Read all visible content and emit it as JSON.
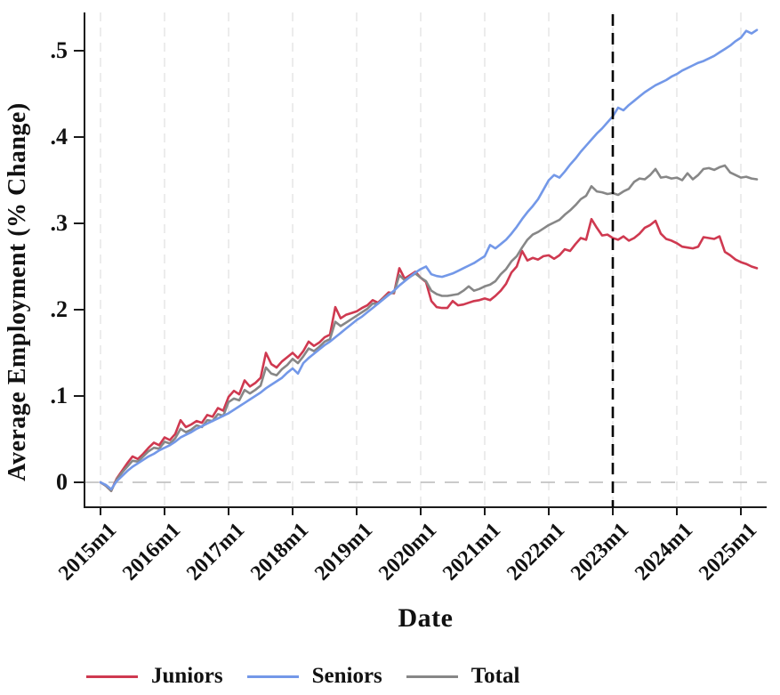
{
  "chart_data": {
    "type": "line",
    "title": "",
    "xlabel": "Date",
    "ylabel": "Average Employment (% Change)",
    "x_unit": "monthly",
    "x_start": "2015m1",
    "x_end": "2025m4",
    "n_points": 124,
    "x_tick_labels": [
      "2015m1",
      "2016m1",
      "2017m1",
      "2018m1",
      "2019m1",
      "2020m1",
      "2021m1",
      "2022m1",
      "2023m1",
      "2024m1",
      "2025m1"
    ],
    "x_tick_month_index": [
      0,
      12,
      24,
      36,
      48,
      60,
      72,
      84,
      96,
      108,
      120
    ],
    "y_ticks": [
      0,
      0.1,
      0.2,
      0.3,
      0.4,
      0.5
    ],
    "y_tick_labels": [
      "0",
      ".1",
      ".2",
      ".3",
      ".4",
      ".5"
    ],
    "ylim": [
      -0.03,
      0.545
    ],
    "grid": "light dashed vertical gridlines at each year tick",
    "legend_position": "bottom",
    "reference_lines": [
      {
        "name": "zero-line",
        "orientation": "horizontal",
        "y": 0,
        "style": "dashed",
        "color": "#c3c3c3"
      },
      {
        "name": "event-line",
        "orientation": "vertical",
        "x": "2023m1",
        "x_month_index": 96,
        "style": "dashed",
        "color": "#000000"
      }
    ],
    "colors": {
      "axis": "#1a1a1a",
      "gridline": "#e8e8e8",
      "background": "#ffffff"
    },
    "series": [
      {
        "name": "Juniors",
        "color": "#cf3950",
        "values": [
          0.0,
          -0.004,
          -0.01,
          0.004,
          0.013,
          0.022,
          0.03,
          0.027,
          0.033,
          0.04,
          0.046,
          0.043,
          0.052,
          0.049,
          0.056,
          0.072,
          0.064,
          0.067,
          0.071,
          0.069,
          0.078,
          0.076,
          0.086,
          0.083,
          0.099,
          0.106,
          0.102,
          0.118,
          0.111,
          0.115,
          0.121,
          0.15,
          0.137,
          0.133,
          0.14,
          0.145,
          0.15,
          0.144,
          0.152,
          0.163,
          0.158,
          0.162,
          0.168,
          0.171,
          0.203,
          0.19,
          0.194,
          0.196,
          0.198,
          0.202,
          0.205,
          0.211,
          0.208,
          0.214,
          0.22,
          0.219,
          0.248,
          0.236,
          0.24,
          0.244,
          0.237,
          0.232,
          0.21,
          0.203,
          0.202,
          0.202,
          0.21,
          0.205,
          0.206,
          0.208,
          0.21,
          0.211,
          0.213,
          0.211,
          0.216,
          0.222,
          0.23,
          0.243,
          0.25,
          0.268,
          0.257,
          0.26,
          0.258,
          0.262,
          0.263,
          0.259,
          0.263,
          0.27,
          0.268,
          0.276,
          0.283,
          0.281,
          0.305,
          0.295,
          0.286,
          0.287,
          0.283,
          0.281,
          0.285,
          0.28,
          0.283,
          0.288,
          0.295,
          0.298,
          0.303,
          0.288,
          0.282,
          0.28,
          0.277,
          0.273,
          0.272,
          0.271,
          0.273,
          0.284,
          0.283,
          0.282,
          0.285,
          0.267,
          0.263,
          0.258,
          0.255,
          0.253,
          0.25,
          0.248
        ]
      },
      {
        "name": "Seniors",
        "color": "#7398e8",
        "values": [
          0.0,
          -0.003,
          -0.008,
          0.001,
          0.007,
          0.013,
          0.018,
          0.022,
          0.026,
          0.03,
          0.033,
          0.037,
          0.04,
          0.043,
          0.047,
          0.052,
          0.055,
          0.058,
          0.062,
          0.065,
          0.068,
          0.071,
          0.074,
          0.077,
          0.08,
          0.084,
          0.088,
          0.092,
          0.096,
          0.1,
          0.104,
          0.109,
          0.113,
          0.117,
          0.121,
          0.127,
          0.132,
          0.126,
          0.138,
          0.144,
          0.149,
          0.154,
          0.159,
          0.163,
          0.168,
          0.173,
          0.178,
          0.183,
          0.188,
          0.192,
          0.197,
          0.202,
          0.207,
          0.212,
          0.217,
          0.222,
          0.228,
          0.233,
          0.238,
          0.243,
          0.247,
          0.25,
          0.241,
          0.239,
          0.238,
          0.24,
          0.242,
          0.245,
          0.248,
          0.251,
          0.254,
          0.258,
          0.262,
          0.275,
          0.271,
          0.276,
          0.281,
          0.288,
          0.296,
          0.305,
          0.313,
          0.32,
          0.328,
          0.339,
          0.35,
          0.356,
          0.353,
          0.36,
          0.368,
          0.375,
          0.383,
          0.39,
          0.397,
          0.404,
          0.41,
          0.417,
          0.424,
          0.434,
          0.431,
          0.437,
          0.442,
          0.447,
          0.452,
          0.456,
          0.46,
          0.463,
          0.466,
          0.47,
          0.473,
          0.477,
          0.48,
          0.483,
          0.486,
          0.488,
          0.491,
          0.494,
          0.498,
          0.502,
          0.506,
          0.511,
          0.515,
          0.523,
          0.52,
          0.524
        ]
      },
      {
        "name": "Total",
        "color": "#878787",
        "values": [
          0.0,
          -0.004,
          -0.01,
          0.003,
          0.011,
          0.018,
          0.025,
          0.024,
          0.03,
          0.036,
          0.04,
          0.039,
          0.047,
          0.045,
          0.051,
          0.062,
          0.058,
          0.061,
          0.066,
          0.064,
          0.072,
          0.071,
          0.079,
          0.077,
          0.093,
          0.097,
          0.095,
          0.107,
          0.103,
          0.107,
          0.112,
          0.133,
          0.126,
          0.124,
          0.131,
          0.136,
          0.143,
          0.138,
          0.146,
          0.155,
          0.152,
          0.157,
          0.163,
          0.166,
          0.186,
          0.181,
          0.185,
          0.189,
          0.193,
          0.197,
          0.201,
          0.207,
          0.207,
          0.213,
          0.218,
          0.22,
          0.24,
          0.234,
          0.238,
          0.242,
          0.237,
          0.233,
          0.222,
          0.218,
          0.216,
          0.216,
          0.217,
          0.218,
          0.222,
          0.227,
          0.222,
          0.224,
          0.227,
          0.229,
          0.233,
          0.241,
          0.247,
          0.256,
          0.262,
          0.272,
          0.281,
          0.287,
          0.29,
          0.294,
          0.298,
          0.301,
          0.304,
          0.31,
          0.315,
          0.321,
          0.328,
          0.332,
          0.343,
          0.337,
          0.336,
          0.334,
          0.335,
          0.333,
          0.337,
          0.34,
          0.348,
          0.352,
          0.351,
          0.356,
          0.363,
          0.353,
          0.354,
          0.352,
          0.353,
          0.35,
          0.358,
          0.351,
          0.356,
          0.363,
          0.364,
          0.362,
          0.365,
          0.367,
          0.359,
          0.356,
          0.353,
          0.354,
          0.352,
          0.351
        ]
      }
    ]
  }
}
